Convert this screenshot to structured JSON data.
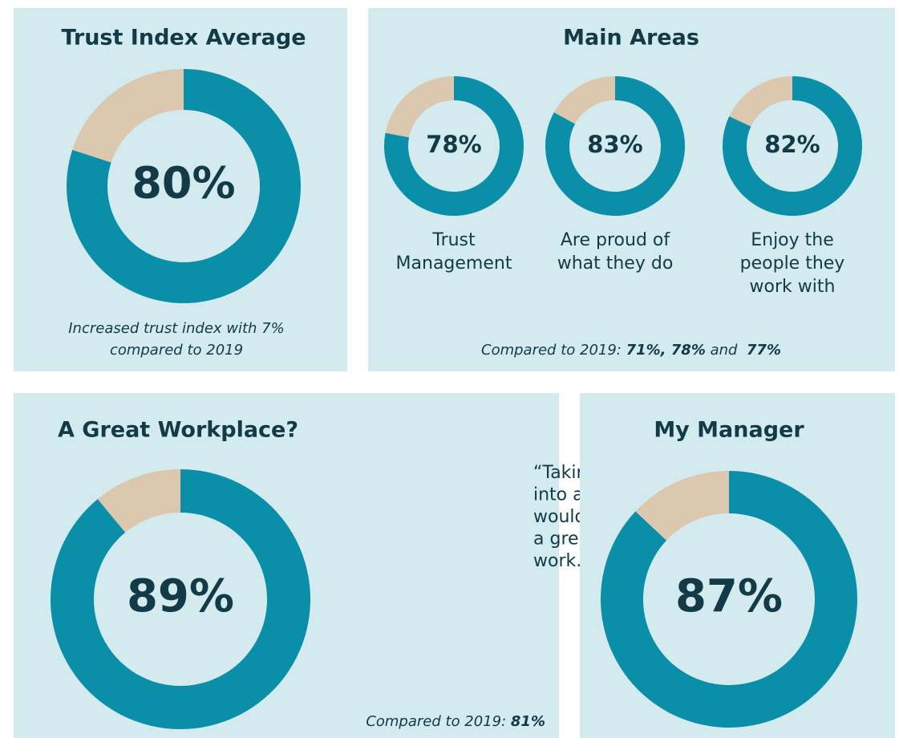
{
  "chart_data": [
    {
      "type": "donut",
      "title": "Trust Index Average",
      "items": [
        {
          "value": 80,
          "value_label": "80%"
        }
      ],
      "note_lines": [
        "Increased trust index with 7%",
        "compared to 2019"
      ],
      "colors": [
        "#0b8fa9",
        "#dcc8ae"
      ]
    },
    {
      "type": "donut",
      "title": "Main Areas",
      "items": [
        {
          "label_lines": [
            "Trust",
            "Management"
          ],
          "value": 78,
          "value_label": "78%"
        },
        {
          "label_lines": [
            "Are proud of",
            "what they do"
          ],
          "value": 83,
          "value_label": "83%"
        },
        {
          "label_lines": [
            "Enjoy the",
            "people they",
            "work with"
          ],
          "value": 82,
          "value_label": "82%"
        }
      ],
      "note": [
        {
          "text": "Compared to 2019: "
        },
        {
          "text": "71%, 78%",
          "bold": true
        },
        {
          "text": " and  "
        },
        {
          "text": "77%",
          "bold": true
        }
      ],
      "colors": [
        "#0b8fa9",
        "#dcc8ae"
      ]
    },
    {
      "type": "donut",
      "title": "A Great Workplace?",
      "items": [
        {
          "value": 89,
          "value_label": "89%"
        }
      ],
      "quote_lines": [
        "“Taking everything",
        "into account, I",
        "would say this is",
        "a great place to",
        "work.”"
      ],
      "note": [
        {
          "text": "Compared to 2019: "
        },
        {
          "text": "81%",
          "bold": true
        }
      ],
      "colors": [
        "#0b8fa9",
        "#dcc8ae"
      ]
    },
    {
      "type": "donut",
      "title": "My Manager",
      "items": [
        {
          "value": 87,
          "value_label": "87%"
        }
      ],
      "colors": [
        "#0b8fa9",
        "#dcc8ae"
      ]
    }
  ]
}
